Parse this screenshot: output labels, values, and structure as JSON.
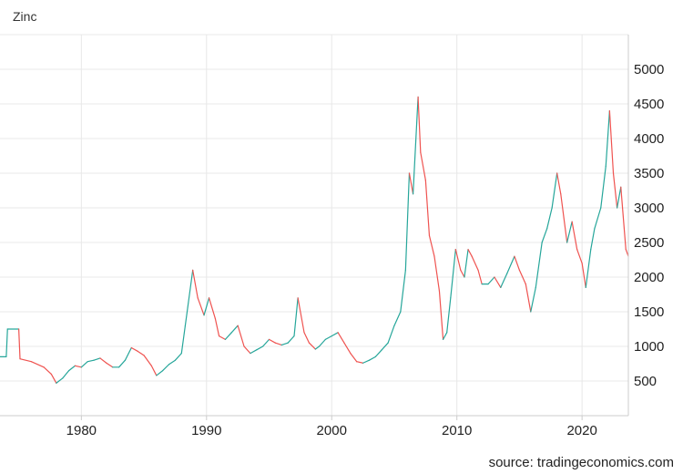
{
  "chart_data": {
    "type": "line",
    "title": "Zinc",
    "source": "source: tradingeconomics.com",
    "xlabel": "",
    "ylabel": "",
    "x_range": [
      1973.5,
      2023.7
    ],
    "y_range": [
      0,
      5500
    ],
    "x_ticks": [
      1980,
      1990,
      2000,
      2010,
      2020
    ],
    "y_ticks": [
      500,
      1000,
      1500,
      2000,
      2500,
      3000,
      3500,
      4000,
      4500,
      5000
    ],
    "grid": true,
    "colors": {
      "up": "#26a69a",
      "down": "#ef5350",
      "grid": "#e8e8e8",
      "axis": "#cccccc"
    },
    "series": [
      {
        "values": [
          [
            1973.5,
            850
          ],
          [
            1974.0,
            850
          ],
          [
            1974.1,
            1250
          ],
          [
            1975.0,
            1250
          ],
          [
            1975.1,
            820
          ],
          [
            1976.0,
            780
          ],
          [
            1977.0,
            700
          ],
          [
            1977.6,
            600
          ],
          [
            1978.0,
            470
          ],
          [
            1978.5,
            540
          ],
          [
            1979.0,
            650
          ],
          [
            1979.5,
            720
          ],
          [
            1980.0,
            700
          ],
          [
            1980.5,
            780
          ],
          [
            1981.0,
            800
          ],
          [
            1981.5,
            830
          ],
          [
            1982.0,
            760
          ],
          [
            1982.5,
            700
          ],
          [
            1983.0,
            700
          ],
          [
            1983.5,
            800
          ],
          [
            1984.0,
            980
          ],
          [
            1984.5,
            930
          ],
          [
            1985.0,
            870
          ],
          [
            1985.6,
            720
          ],
          [
            1986.0,
            580
          ],
          [
            1986.5,
            650
          ],
          [
            1987.0,
            740
          ],
          [
            1987.5,
            800
          ],
          [
            1988.0,
            900
          ],
          [
            1988.3,
            1300
          ],
          [
            1988.9,
            2100
          ],
          [
            1989.3,
            1700
          ],
          [
            1989.8,
            1450
          ],
          [
            1990.2,
            1700
          ],
          [
            1990.7,
            1400
          ],
          [
            1991.0,
            1150
          ],
          [
            1991.5,
            1100
          ],
          [
            1992.0,
            1200
          ],
          [
            1992.5,
            1300
          ],
          [
            1993.0,
            1000
          ],
          [
            1993.5,
            900
          ],
          [
            1994.0,
            950
          ],
          [
            1994.5,
            1000
          ],
          [
            1995.0,
            1100
          ],
          [
            1995.5,
            1050
          ],
          [
            1996.0,
            1020
          ],
          [
            1996.5,
            1050
          ],
          [
            1997.0,
            1150
          ],
          [
            1997.3,
            1700
          ],
          [
            1997.8,
            1200
          ],
          [
            1998.2,
            1050
          ],
          [
            1998.7,
            960
          ],
          [
            1999.0,
            1000
          ],
          [
            1999.5,
            1100
          ],
          [
            2000.0,
            1150
          ],
          [
            2000.5,
            1200
          ],
          [
            2001.0,
            1050
          ],
          [
            2001.5,
            900
          ],
          [
            2002.0,
            780
          ],
          [
            2002.5,
            760
          ],
          [
            2003.0,
            800
          ],
          [
            2003.5,
            850
          ],
          [
            2004.0,
            950
          ],
          [
            2004.5,
            1050
          ],
          [
            2005.0,
            1300
          ],
          [
            2005.5,
            1500
          ],
          [
            2005.9,
            2100
          ],
          [
            2006.2,
            3500
          ],
          [
            2006.5,
            3200
          ],
          [
            2006.9,
            4600
          ],
          [
            2007.1,
            3800
          ],
          [
            2007.5,
            3400
          ],
          [
            2007.8,
            2600
          ],
          [
            2008.2,
            2300
          ],
          [
            2008.6,
            1800
          ],
          [
            2008.9,
            1100
          ],
          [
            2009.2,
            1200
          ],
          [
            2009.5,
            1700
          ],
          [
            2009.9,
            2400
          ],
          [
            2010.3,
            2100
          ],
          [
            2010.6,
            2000
          ],
          [
            2010.9,
            2400
          ],
          [
            2011.2,
            2300
          ],
          [
            2011.7,
            2100
          ],
          [
            2012.0,
            1900
          ],
          [
            2012.5,
            1900
          ],
          [
            2013.0,
            2000
          ],
          [
            2013.5,
            1850
          ],
          [
            2014.0,
            2050
          ],
          [
            2014.6,
            2300
          ],
          [
            2015.0,
            2100
          ],
          [
            2015.5,
            1900
          ],
          [
            2015.9,
            1500
          ],
          [
            2016.3,
            1850
          ],
          [
            2016.8,
            2500
          ],
          [
            2017.2,
            2700
          ],
          [
            2017.6,
            3000
          ],
          [
            2018.0,
            3500
          ],
          [
            2018.3,
            3200
          ],
          [
            2018.8,
            2500
          ],
          [
            2019.2,
            2800
          ],
          [
            2019.6,
            2400
          ],
          [
            2020.0,
            2200
          ],
          [
            2020.3,
            1850
          ],
          [
            2020.7,
            2400
          ],
          [
            2021.0,
            2700
          ],
          [
            2021.5,
            3000
          ],
          [
            2021.9,
            3600
          ],
          [
            2022.2,
            4400
          ],
          [
            2022.5,
            3500
          ],
          [
            2022.8,
            3000
          ],
          [
            2023.1,
            3300
          ],
          [
            2023.5,
            2400
          ],
          [
            2023.7,
            2300
          ]
        ]
      }
    ]
  }
}
